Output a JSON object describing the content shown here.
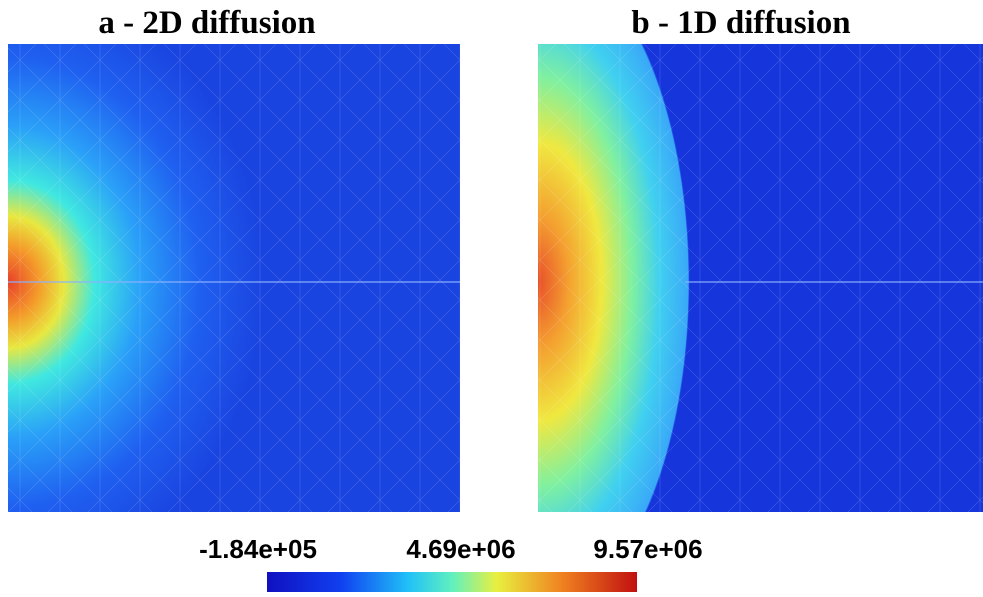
{
  "panels": [
    {
      "title": "a - 2D diffusion"
    },
    {
      "title": "b - 1D diffusion"
    }
  ],
  "colorbar": {
    "labels": [
      "-1.84e+05",
      "4.69e+06",
      "9.57e+06"
    ]
  }
}
